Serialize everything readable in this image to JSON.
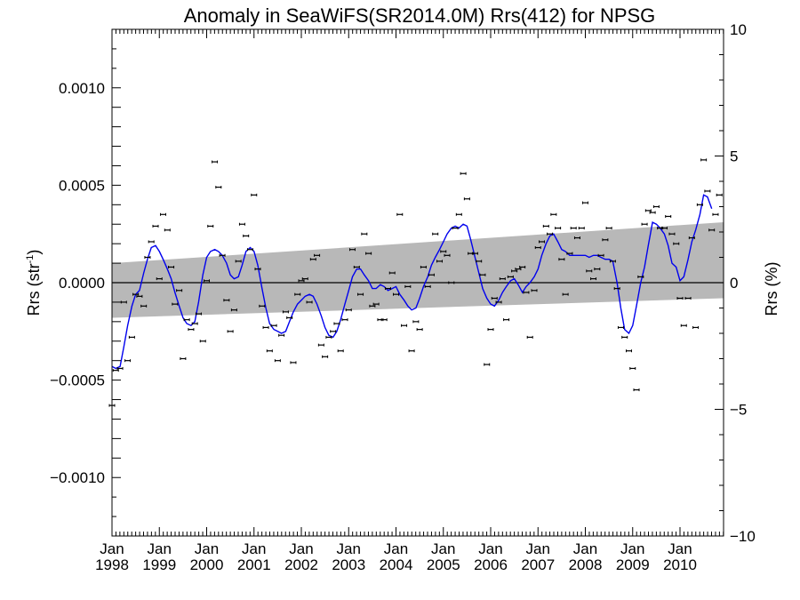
{
  "chart_data": {
    "type": "scatter",
    "title": "Anomaly in SeaWiFS(SR2014.0M) Rrs(412) for NPSG",
    "ylabel_left": "Rrs (str",
    "ylabel_left_sup": "-1",
    "ylabel_left_close": ")",
    "ylabel_right": "Rrs (%)",
    "xlim": [
      1998.0,
      2010.92
    ],
    "ylim": [
      -0.0013,
      0.0013
    ],
    "ylim_right": [
      -10,
      10
    ],
    "left_ticks": [
      {
        "v": 0.001,
        "label": "0.0010"
      },
      {
        "v": 0.0005,
        "label": "0.0005"
      },
      {
        "v": 0.0,
        "label": "0.0000"
      },
      {
        "v": -0.0005,
        "label": "−0.0005"
      },
      {
        "v": -0.001,
        "label": "−0.0010"
      }
    ],
    "right_ticks": [
      {
        "v": 10,
        "label": "10"
      },
      {
        "v": 5,
        "label": "5"
      },
      {
        "v": 0,
        "label": "0"
      },
      {
        "v": -5,
        "label": "−5"
      },
      {
        "v": -10,
        "label": "−10"
      }
    ],
    "x_ticks": [
      {
        "v": 1998,
        "line1": "Jan",
        "line2": "1998"
      },
      {
        "v": 1999,
        "line1": "Jan",
        "line2": "1999"
      },
      {
        "v": 2000,
        "line1": "Jan",
        "line2": "2000"
      },
      {
        "v": 2001,
        "line1": "Jan",
        "line2": "2001"
      },
      {
        "v": 2002,
        "line1": "Jan",
        "line2": "2002"
      },
      {
        "v": 2003,
        "line1": "Jan",
        "line2": "2003"
      },
      {
        "v": 2004,
        "line1": "Jan",
        "line2": "2004"
      },
      {
        "v": 2005,
        "line1": "Jan",
        "line2": "2005"
      },
      {
        "v": 2006,
        "line1": "Jan",
        "line2": "2006"
      },
      {
        "v": 2007,
        "line1": "Jan",
        "line2": "2007"
      },
      {
        "v": 2008,
        "line1": "Jan",
        "line2": "2008"
      },
      {
        "v": 2009,
        "line1": "Jan",
        "line2": "2009"
      },
      {
        "v": 2010,
        "line1": "Jan",
        "line2": "2010"
      }
    ],
    "trend_band": {
      "upper": [
        [
          1998.0,
          0.0001
        ],
        [
          2010.92,
          0.00031
        ]
      ],
      "lower": [
        [
          1998.0,
          -0.00018
        ],
        [
          2010.92,
          -8e-05
        ]
      ]
    },
    "colors": {
      "smooth": "#0000ee",
      "band": "#b8b8b8",
      "points": "#000000"
    },
    "points": [
      [
        1998.0,
        -0.00063
      ],
      [
        1998.08,
        -0.00045
      ],
      [
        1998.17,
        -0.00044
      ],
      [
        1998.25,
        -0.0001
      ],
      [
        1998.33,
        -0.0004
      ],
      [
        1998.42,
        -0.00028
      ],
      [
        1998.5,
        -6e-05
      ],
      [
        1998.58,
        -7e-05
      ],
      [
        1998.67,
        -0.00012
      ],
      [
        1998.75,
        0.00013
      ],
      [
        1998.83,
        0.00021
      ],
      [
        1998.92,
        0.00029
      ],
      [
        1999.0,
        2e-05
      ],
      [
        1999.08,
        0.00035
      ],
      [
        1999.17,
        0.00027
      ],
      [
        1999.25,
        8e-05
      ],
      [
        1999.33,
        -0.00011
      ],
      [
        1999.42,
        -4e-05
      ],
      [
        1999.5,
        -0.00039
      ],
      [
        1999.58,
        -0.00019
      ],
      [
        1999.67,
        -0.00024
      ],
      [
        1999.75,
        -0.00021
      ],
      [
        1999.83,
        -0.00016
      ],
      [
        1999.92,
        -0.0003
      ],
      [
        2000.0,
        1e-05
      ],
      [
        2000.08,
        0.00029
      ],
      [
        2000.17,
        0.00062
      ],
      [
        2000.25,
        0.00049
      ],
      [
        2000.33,
        0.00014
      ],
      [
        2000.42,
        -9e-05
      ],
      [
        2000.5,
        -0.00025
      ],
      [
        2000.58,
        -0.00014
      ],
      [
        2000.67,
        0.00011
      ],
      [
        2000.75,
        0.0003
      ],
      [
        2000.83,
        0.00024
      ],
      [
        2000.92,
        0.00017
      ],
      [
        2001.0,
        0.00045
      ],
      [
        2001.08,
        7e-05
      ],
      [
        2001.17,
        -0.00012
      ],
      [
        2001.25,
        -0.00023
      ],
      [
        2001.33,
        -0.00035
      ],
      [
        2001.42,
        -0.00022
      ],
      [
        2001.5,
        -0.0004
      ],
      [
        2001.58,
        -0.00027
      ],
      [
        2001.67,
        -0.00015
      ],
      [
        2001.75,
        -0.00018
      ],
      [
        2001.83,
        -0.00041
      ],
      [
        2001.92,
        -6e-05
      ],
      [
        2002.0,
        1e-05
      ],
      [
        2002.08,
        2e-05
      ],
      [
        2002.17,
        -0.0001
      ],
      [
        2002.25,
        0.00012
      ],
      [
        2002.33,
        0.00014
      ],
      [
        2002.42,
        -0.00032
      ],
      [
        2002.5,
        -0.00038
      ],
      [
        2002.58,
        -0.00028
      ],
      [
        2002.67,
        -0.00025
      ],
      [
        2002.75,
        -0.00021
      ],
      [
        2002.83,
        -0.00035
      ],
      [
        2002.92,
        -0.00019
      ],
      [
        2003.0,
        -0.00014
      ],
      [
        2003.08,
        0.00017
      ],
      [
        2003.17,
        8e-05
      ],
      [
        2003.25,
        -6e-05
      ],
      [
        2003.33,
        0.00025
      ],
      [
        2003.42,
        0.00015
      ],
      [
        2003.5,
        -0.00012
      ],
      [
        2003.58,
        -0.00011
      ],
      [
        2003.67,
        -0.00019
      ],
      [
        2003.75,
        -0.00019
      ],
      [
        2003.83,
        -3e-05
      ],
      [
        2003.92,
        5e-05
      ],
      [
        2004.0,
        -6e-05
      ],
      [
        2004.08,
        0.00035
      ],
      [
        2004.17,
        -0.00022
      ],
      [
        2004.25,
        -2e-05
      ],
      [
        2004.33,
        -0.00035
      ],
      [
        2004.42,
        -0.0002
      ],
      [
        2004.5,
        -0.00024
      ],
      [
        2004.58,
        8e-05
      ],
      [
        2004.67,
        -2e-05
      ],
      [
        2004.75,
        4e-05
      ],
      [
        2004.83,
        0.00025
      ],
      [
        2004.92,
        0.00011
      ],
      [
        2005.0,
        0.00016
      ],
      [
        2005.08,
        0.00014
      ],
      [
        2005.17,
        0.0
      ],
      [
        2005.25,
        0.00028
      ],
      [
        2005.33,
        0.00035
      ],
      [
        2005.42,
        0.00056
      ],
      [
        2005.5,
        0.00043
      ],
      [
        2005.58,
        0.00015
      ],
      [
        2005.67,
        0.00015
      ],
      [
        2005.75,
        0.00011
      ],
      [
        2005.83,
        4e-05
      ],
      [
        2005.92,
        -0.00042
      ],
      [
        2006.0,
        -0.00024
      ],
      [
        2006.08,
        -8e-05
      ],
      [
        2006.17,
        -0.0001
      ],
      [
        2006.25,
        2e-05
      ],
      [
        2006.33,
        -0.00019
      ],
      [
        2006.42,
        3e-05
      ],
      [
        2006.5,
        6e-05
      ],
      [
        2006.58,
        7e-05
      ],
      [
        2006.67,
        8e-05
      ],
      [
        2006.75,
        -5e-05
      ],
      [
        2006.83,
        -0.00028
      ],
      [
        2006.92,
        -4e-05
      ],
      [
        2007.0,
        0.00018
      ],
      [
        2007.08,
        0.00021
      ],
      [
        2007.17,
        0.00029
      ],
      [
        2007.25,
        0.00025
      ],
      [
        2007.33,
        0.00035
      ],
      [
        2007.42,
        0.00028
      ],
      [
        2007.5,
        0.00012
      ],
      [
        2007.58,
        -6e-05
      ],
      [
        2007.67,
        0.00015
      ],
      [
        2007.75,
        0.00028
      ],
      [
        2007.83,
        0.00023
      ],
      [
        2007.92,
        0.00028
      ],
      [
        2008.0,
        0.00041
      ],
      [
        2008.08,
        6e-05
      ],
      [
        2008.17,
        2e-05
      ],
      [
        2008.25,
        7e-05
      ],
      [
        2008.33,
        0.00014
      ],
      [
        2008.42,
        0.00022
      ],
      [
        2008.5,
        0.00028
      ],
      [
        2008.58,
        0.00011
      ],
      [
        2008.67,
        -3e-05
      ],
      [
        2008.75,
        -0.00023
      ],
      [
        2008.83,
        -0.00028
      ],
      [
        2008.92,
        -0.00035
      ],
      [
        2009.0,
        -0.00044
      ],
      [
        2009.08,
        -0.00055
      ],
      [
        2009.17,
        3e-05
      ],
      [
        2009.25,
        0.0003
      ],
      [
        2009.33,
        0.00037
      ],
      [
        2009.42,
        0.00036
      ],
      [
        2009.5,
        0.00039
      ],
      [
        2009.58,
        0.00028
      ],
      [
        2009.67,
        0.00028
      ],
      [
        2009.75,
        0.00034
      ],
      [
        2009.83,
        0.00025
      ],
      [
        2009.92,
        0.0002
      ],
      [
        2010.0,
        -8e-05
      ],
      [
        2010.08,
        -0.00022
      ],
      [
        2010.17,
        -8e-05
      ],
      [
        2010.25,
        0.00023
      ],
      [
        2010.33,
        -0.00023
      ],
      [
        2010.42,
        0.0004
      ],
      [
        2010.5,
        0.00063
      ],
      [
        2010.58,
        0.00047
      ],
      [
        2010.67,
        0.00027
      ],
      [
        2010.75,
        0.00035
      ],
      [
        2010.83,
        0.00045
      ]
    ],
    "smooth": [
      [
        1998.0,
        -0.00043
      ],
      [
        1998.08,
        -0.00044
      ],
      [
        1998.17,
        -0.00043
      ],
      [
        1998.25,
        -0.00033
      ],
      [
        1998.33,
        -0.00022
      ],
      [
        1998.42,
        -0.00012
      ],
      [
        1998.5,
        -6e-05
      ],
      [
        1998.58,
        -4e-05
      ],
      [
        1998.67,
        5e-05
      ],
      [
        1998.75,
        0.00012
      ],
      [
        1998.83,
        0.00018
      ],
      [
        1998.92,
        0.00019
      ],
      [
        1999.0,
        0.00016
      ],
      [
        1999.08,
        0.00012
      ],
      [
        1999.17,
        7e-05
      ],
      [
        1999.25,
        2e-05
      ],
      [
        1999.33,
        -5e-05
      ],
      [
        1999.42,
        -0.00012
      ],
      [
        1999.5,
        -0.00018
      ],
      [
        1999.58,
        -0.00021
      ],
      [
        1999.67,
        -0.00022
      ],
      [
        1999.75,
        -0.0002
      ],
      [
        1999.83,
        -0.0001
      ],
      [
        1999.92,
        4e-05
      ],
      [
        2000.0,
        0.00013
      ],
      [
        2000.08,
        0.00016
      ],
      [
        2000.17,
        0.00017
      ],
      [
        2000.25,
        0.00016
      ],
      [
        2000.33,
        0.00014
      ],
      [
        2000.42,
        0.0001
      ],
      [
        2000.5,
        4e-05
      ],
      [
        2000.58,
        2e-05
      ],
      [
        2000.67,
        3e-05
      ],
      [
        2000.75,
        9e-05
      ],
      [
        2000.83,
        0.00016
      ],
      [
        2000.92,
        0.00018
      ],
      [
        2001.0,
        0.00016
      ],
      [
        2001.08,
        9e-05
      ],
      [
        2001.17,
        -3e-05
      ],
      [
        2001.25,
        -0.00013
      ],
      [
        2001.33,
        -0.00021
      ],
      [
        2001.42,
        -0.00024
      ],
      [
        2001.5,
        -0.00025
      ],
      [
        2001.58,
        -0.00026
      ],
      [
        2001.67,
        -0.00025
      ],
      [
        2001.75,
        -0.0002
      ],
      [
        2001.83,
        -0.00015
      ],
      [
        2001.92,
        -0.00011
      ],
      [
        2002.0,
        -9e-05
      ],
      [
        2002.08,
        -7e-05
      ],
      [
        2002.17,
        -6e-05
      ],
      [
        2002.25,
        -7e-05
      ],
      [
        2002.33,
        -0.00011
      ],
      [
        2002.42,
        -0.00017
      ],
      [
        2002.5,
        -0.00023
      ],
      [
        2002.58,
        -0.00027
      ],
      [
        2002.67,
        -0.00028
      ],
      [
        2002.75,
        -0.00025
      ],
      [
        2002.83,
        -0.00019
      ],
      [
        2002.92,
        -0.00011
      ],
      [
        2003.0,
        -4e-05
      ],
      [
        2003.08,
        3e-05
      ],
      [
        2003.17,
        7e-05
      ],
      [
        2003.25,
        7e-05
      ],
      [
        2003.33,
        4e-05
      ],
      [
        2003.42,
        1e-05
      ],
      [
        2003.5,
        -3e-05
      ],
      [
        2003.58,
        -3e-05
      ],
      [
        2003.67,
        -1e-05
      ],
      [
        2003.75,
        -2e-05
      ],
      [
        2003.83,
        -4e-05
      ],
      [
        2003.92,
        -3e-05
      ],
      [
        2004.0,
        -2e-05
      ],
      [
        2004.08,
        -6e-05
      ],
      [
        2004.17,
        -9e-05
      ],
      [
        2004.25,
        -0.00012
      ],
      [
        2004.33,
        -0.00014
      ],
      [
        2004.42,
        -0.00013
      ],
      [
        2004.5,
        -8e-05
      ],
      [
        2004.58,
        -2e-05
      ],
      [
        2004.67,
        3e-05
      ],
      [
        2004.75,
        9e-05
      ],
      [
        2004.83,
        0.00013
      ],
      [
        2004.92,
        0.00017
      ],
      [
        2005.0,
        0.00021
      ],
      [
        2005.08,
        0.00025
      ],
      [
        2005.17,
        0.00028
      ],
      [
        2005.25,
        0.00029
      ],
      [
        2005.33,
        0.00028
      ],
      [
        2005.42,
        0.0003
      ],
      [
        2005.5,
        0.00029
      ],
      [
        2005.58,
        0.00022
      ],
      [
        2005.67,
        0.00013
      ],
      [
        2005.75,
        5e-05
      ],
      [
        2005.83,
        -3e-05
      ],
      [
        2005.92,
        -8e-05
      ],
      [
        2006.0,
        -0.00011
      ],
      [
        2006.08,
        -0.00012
      ],
      [
        2006.17,
        -9e-05
      ],
      [
        2006.25,
        -5e-05
      ],
      [
        2006.33,
        -2e-05
      ],
      [
        2006.42,
        1e-05
      ],
      [
        2006.5,
        2e-05
      ],
      [
        2006.58,
        -1e-05
      ],
      [
        2006.67,
        -5e-05
      ],
      [
        2006.75,
        -2e-05
      ],
      [
        2006.83,
        0.0
      ],
      [
        2006.92,
        3e-05
      ],
      [
        2007.0,
        7e-05
      ],
      [
        2007.08,
        0.00014
      ],
      [
        2007.17,
        0.0002
      ],
      [
        2007.25,
        0.00024
      ],
      [
        2007.33,
        0.00025
      ],
      [
        2007.42,
        0.00021
      ],
      [
        2007.5,
        0.00017
      ],
      [
        2007.58,
        0.00016
      ],
      [
        2007.67,
        0.00014
      ],
      [
        2007.75,
        0.00014
      ],
      [
        2007.83,
        0.00014
      ],
      [
        2007.92,
        0.00014
      ],
      [
        2008.0,
        0.00014
      ],
      [
        2008.08,
        0.00013
      ],
      [
        2008.17,
        0.00014
      ],
      [
        2008.25,
        0.00014
      ],
      [
        2008.33,
        0.00013
      ],
      [
        2008.42,
        0.00012
      ],
      [
        2008.5,
        0.00012
      ],
      [
        2008.58,
        0.00011
      ],
      [
        2008.67,
        0.0
      ],
      [
        2008.75,
        -0.00013
      ],
      [
        2008.83,
        -0.00024
      ],
      [
        2008.92,
        -0.00026
      ],
      [
        2009.0,
        -0.00022
      ],
      [
        2009.08,
        -0.00012
      ],
      [
        2009.17,
        0.0
      ],
      [
        2009.25,
        8e-05
      ],
      [
        2009.33,
        0.00019
      ],
      [
        2009.42,
        0.00031
      ],
      [
        2009.5,
        0.0003
      ],
      [
        2009.58,
        0.00028
      ],
      [
        2009.67,
        0.00025
      ],
      [
        2009.75,
        0.00019
      ],
      [
        2009.83,
        0.0001
      ],
      [
        2009.92,
        8e-05
      ],
      [
        2010.0,
        1e-05
      ],
      [
        2010.08,
        3e-05
      ],
      [
        2010.17,
        0.00012
      ],
      [
        2010.25,
        0.00021
      ],
      [
        2010.33,
        0.00027
      ],
      [
        2010.42,
        0.00035
      ],
      [
        2010.5,
        0.00045
      ],
      [
        2010.58,
        0.00044
      ],
      [
        2010.67,
        0.00038
      ]
    ]
  }
}
